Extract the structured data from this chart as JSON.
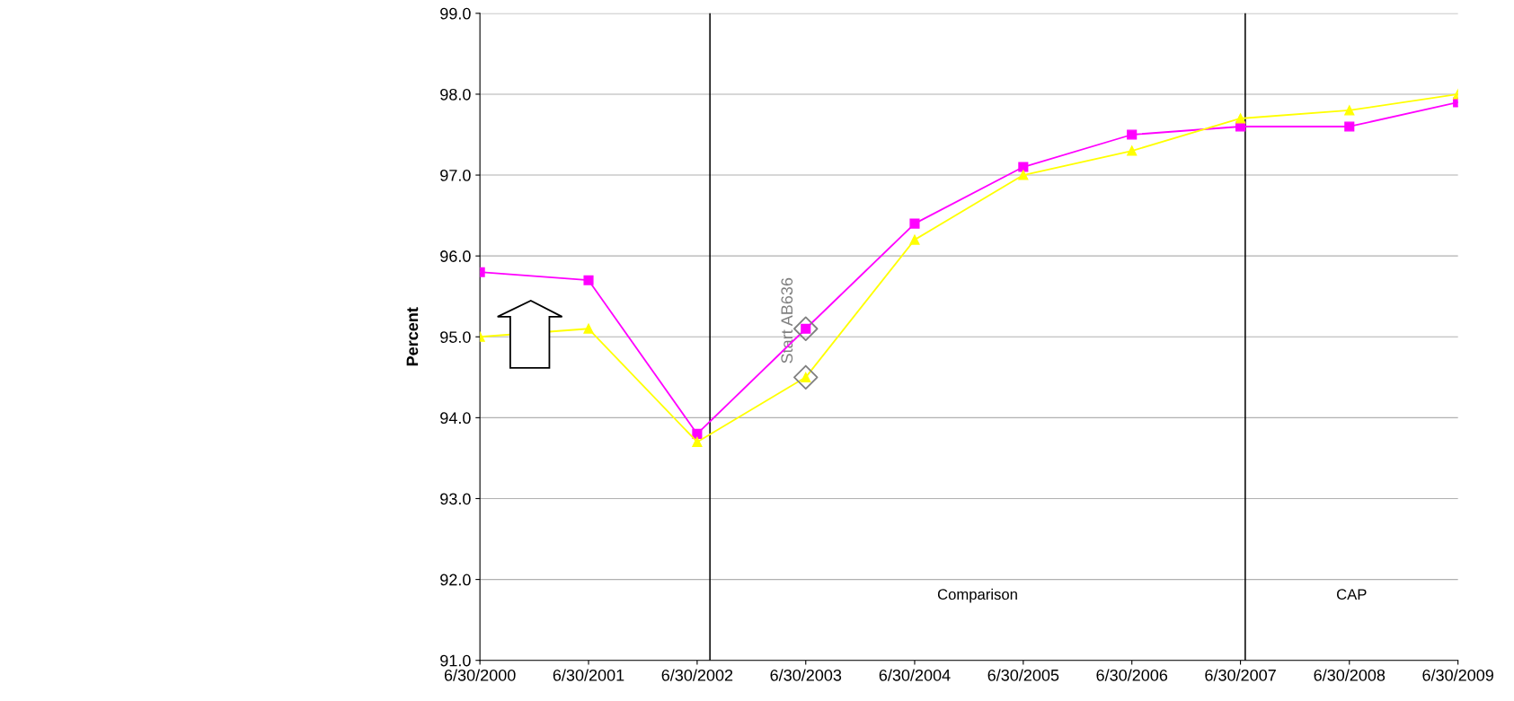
{
  "chart_data": {
    "type": "line",
    "ylabel": "Percent",
    "x": [
      "2000-06-30",
      "2001-06-30",
      "2002-06-30",
      "2003-06-30",
      "2004-06-30",
      "2005-06-30",
      "2006-06-30",
      "2007-06-30",
      "2008-06-30",
      "2009-06-30"
    ],
    "series": [
      {
        "color": "#ff00ff",
        "marker": "square",
        "values": [
          95.8,
          95.7,
          93.8,
          95.1,
          96.4,
          97.1,
          97.5,
          97.6,
          97.6,
          97.9
        ]
      },
      {
        "color": "#ffff00",
        "marker": "triangle",
        "values": [
          95.0,
          95.1,
          93.7,
          94.5,
          96.2,
          97.0,
          97.3,
          97.7,
          97.8,
          98.0
        ]
      },
      {
        "type": "scatter",
        "color": "#808080",
        "marker": "diamond",
        "x": [
          "2003-06-30",
          "2003-06-30"
        ],
        "values": [
          95.1,
          94.5
        ]
      }
    ],
    "xlim": [
      "2000-06-30",
      "2009-06-30"
    ],
    "xticks": [
      {
        "value": "2000-06-30",
        "label": "6/30/2000"
      },
      {
        "value": "2001-06-30",
        "label": "6/30/2001"
      },
      {
        "value": "2002-06-30",
        "label": "6/30/2002"
      },
      {
        "value": "2003-06-30",
        "label": "6/30/2003"
      },
      {
        "value": "2004-06-30",
        "label": "6/30/2004"
      },
      {
        "value": "2005-06-30",
        "label": "6/30/2005"
      },
      {
        "value": "2006-06-30",
        "label": "6/30/2006"
      },
      {
        "value": "2007-06-30",
        "label": "6/30/2007"
      },
      {
        "value": "2008-06-30",
        "label": "6/30/2008"
      },
      {
        "value": "2009-06-30",
        "label": "6/30/2009"
      }
    ],
    "ylim": [
      91.0,
      99.0
    ],
    "yticks": [
      {
        "value": 91,
        "label": "91.0"
      },
      {
        "value": 92,
        "label": "92.0"
      },
      {
        "value": 93,
        "label": "93.0"
      },
      {
        "value": 94,
        "label": "94.0"
      },
      {
        "value": 95,
        "label": "95.0"
      },
      {
        "value": 96,
        "label": "96.0"
      },
      {
        "value": 97,
        "label": "97.0"
      },
      {
        "value": 98,
        "label": "98.0"
      },
      {
        "value": 99,
        "label": "99.0"
      }
    ],
    "grid": "y",
    "legend": false,
    "ref_lines": [
      {
        "axis": "x",
        "value": "2002-08-12",
        "color": "#000000"
      },
      {
        "axis": "x",
        "value": "2007-07-16",
        "color": "#000000"
      }
    ],
    "annotations": [
      {
        "text": "Start AB636",
        "x": "2003-06-30",
        "y": 95.2
      },
      "Comparison",
      "CAP"
    ]
  }
}
